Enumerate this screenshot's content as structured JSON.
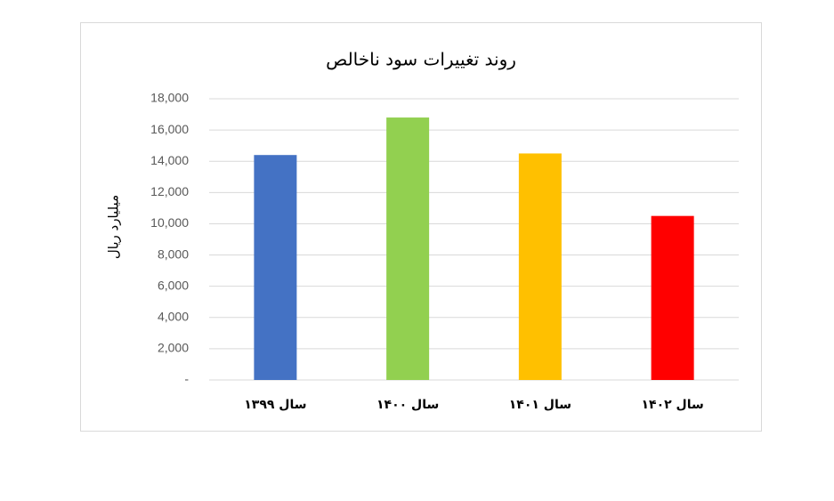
{
  "chart_data": {
    "type": "bar",
    "title": "روند تغییرات سود ناخالص",
    "y_label": "میلیارد ریال",
    "categories": [
      "سال ۱۳۹۹",
      "سال ۱۴۰۰",
      "سال ۱۴۰۱",
      "سال ۱۴۰۲"
    ],
    "values": [
      14400,
      16800,
      14500,
      10500
    ],
    "colors": [
      "#4472c4",
      "#92d050",
      "#ffc000",
      "#ff0000"
    ],
    "ylim": [
      0,
      18000
    ],
    "yticks": [
      {
        "value": 0,
        "label": "-"
      },
      {
        "value": 2000,
        "label": "2,000"
      },
      {
        "value": 4000,
        "label": "4,000"
      },
      {
        "value": 6000,
        "label": "6,000"
      },
      {
        "value": 8000,
        "label": "8,000"
      },
      {
        "value": 10000,
        "label": "10,000"
      },
      {
        "value": 12000,
        "label": "12,000"
      },
      {
        "value": 14000,
        "label": "14,000"
      },
      {
        "value": 16000,
        "label": "16,000"
      },
      {
        "value": 18000,
        "label": "18,000"
      }
    ],
    "grid": true
  }
}
